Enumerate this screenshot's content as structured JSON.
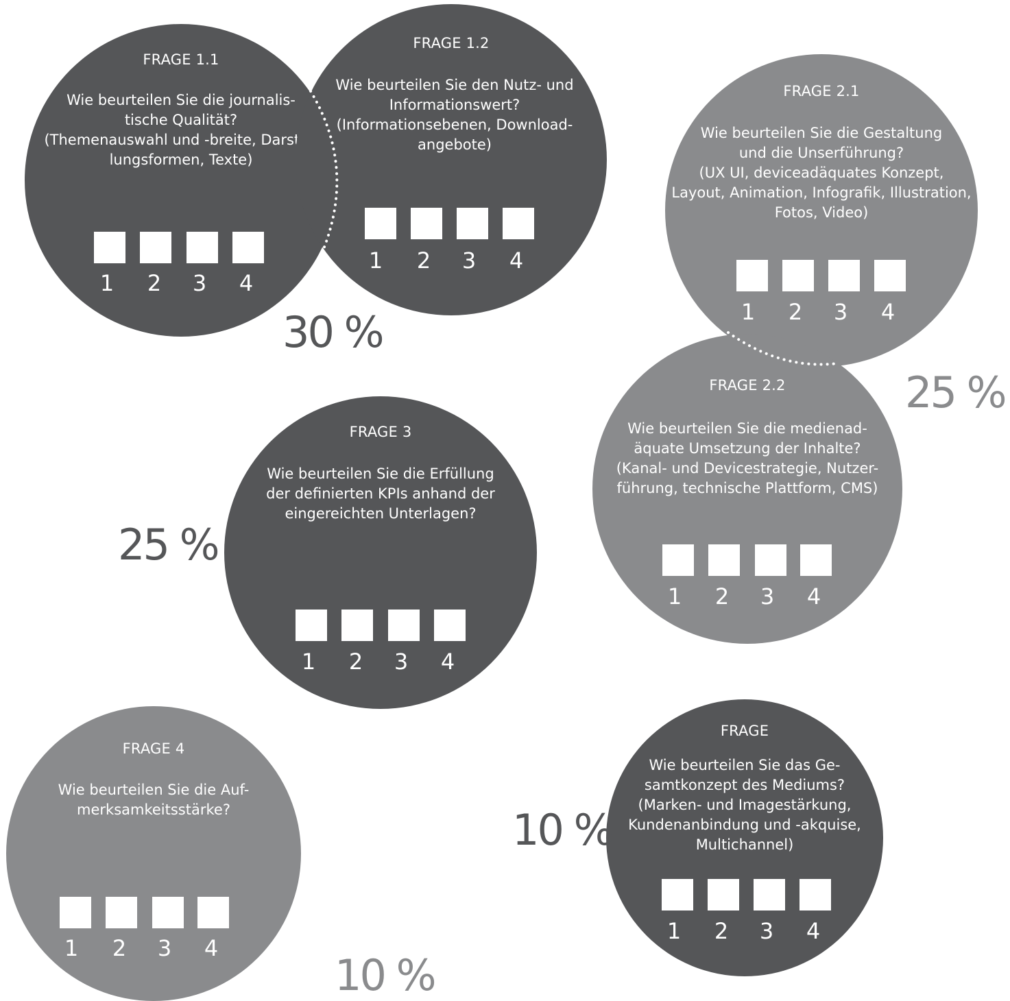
{
  "colors": {
    "dark": "#555658",
    "light": "#8a8b8d",
    "background": "#ffffff"
  },
  "scale_numbers": [
    "1",
    "2",
    "3",
    "4"
  ],
  "percentages": {
    "group1": "30 %",
    "group2": "25 %",
    "q3": "25 %",
    "q4": "10 %",
    "q5": "10 %"
  },
  "questions": [
    {
      "label": "FRAGE 1.1",
      "text": "Wie beurteilen Sie die journalis-\ntische Qualität?\n(Themenauswahl und -breite, Darstel-\nlungsformen, Texte)"
    },
    {
      "label": "FRAGE 1.2",
      "text": "Wie beurteilen Sie den Nutz- und\nInformationswert?\n(Informationsebenen, Download-\nangebote)"
    },
    {
      "label": "FRAGE 2.1",
      "text": "Wie beurteilen Sie die Gestaltung\nund die Unserführung?\n(UX UI, deviceadäquates Konzept,\nLayout, Animation, Infografik, Illustration,\nFotos, Video)"
    },
    {
      "label": "FRAGE 2.2",
      "text": "Wie beurteilen Sie die medienad-\näquate Umsetzung der Inhalte?\n(Kanal- und Devicestrategie, Nutzer-\nführung, technische Plattform, CMS)"
    },
    {
      "label": "FRAGE 3",
      "text": "Wie beurteilen Sie die Erfüllung\nder definierten KPIs anhand der\neingereichten Unterlagen?"
    },
    {
      "label": "FRAGE 4",
      "text": "Wie beurteilen Sie die Auf-\nmerksamkeitsstärke?"
    },
    {
      "label": "FRAGE",
      "text": "Wie beurteilen Sie das Ge-\nsamtkonzept des Mediums?\n(Marken- und Imagestärkung,\nKundenanbindung und -akquise,\nMultichannel)"
    }
  ]
}
